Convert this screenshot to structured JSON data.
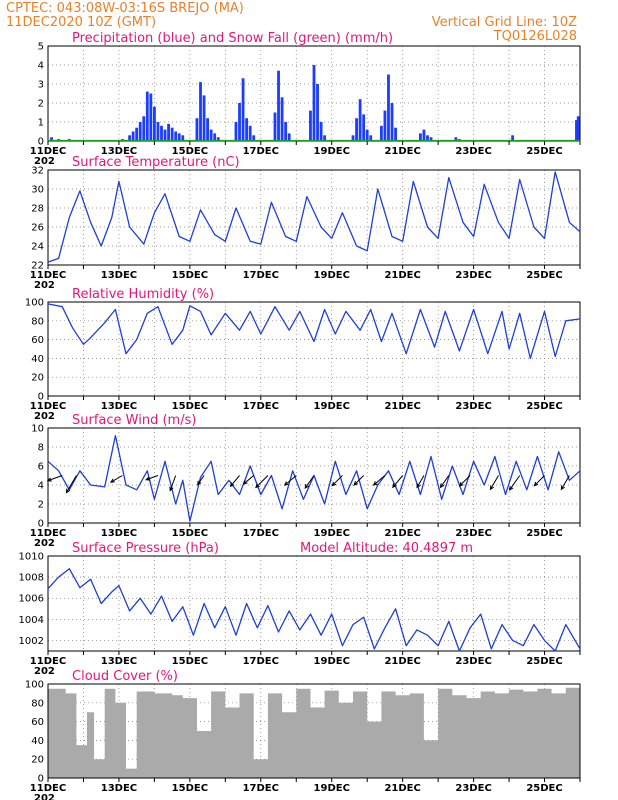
{
  "header": {
    "line1": "CPTEC:   043:08W-03:16S   BREJO (MA)",
    "line2": "11DEC2020 10Z (GMT)",
    "grid_note": "Vertical Grid Line: 10Z",
    "model_id": "TQ0126L028"
  },
  "x_ticks": [
    "11DEC",
    "13DEC",
    "15DEC",
    "17DEC",
    "19DEC",
    "21DEC",
    "23DEC",
    "25DEC"
  ],
  "x_tick_sub": "202",
  "colors": {
    "header": "#e8822a",
    "title": "#e0187a",
    "precip": "#1a3dff",
    "snow": "#1aa01a",
    "line": "#1f3fd6",
    "cloud": "#aaaaaa",
    "arrow": "#000000"
  },
  "chart_data": [
    {
      "type": "bar",
      "title": "Precipitation (blue) and Snow Fall (green) (mm/h)",
      "ylim": [
        0,
        5
      ],
      "yticks": [
        "0",
        "1",
        "2",
        "3",
        "4",
        "5"
      ],
      "x_unit": "days since 11DEC 10Z",
      "series": [
        {
          "name": "Precipitation (blue)",
          "x": [
            0.1,
            0.3,
            0.6,
            2.1,
            2.3,
            2.4,
            2.5,
            2.6,
            2.7,
            2.8,
            2.9,
            3.0,
            3.1,
            3.2,
            3.3,
            3.4,
            3.5,
            3.6,
            3.7,
            3.8,
            4.2,
            4.3,
            4.4,
            4.5,
            4.6,
            4.7,
            4.8,
            5.3,
            5.4,
            5.5,
            5.6,
            5.7,
            5.8,
            6.4,
            6.5,
            6.6,
            6.7,
            6.8,
            7.4,
            7.5,
            7.6,
            7.7,
            7.8,
            8.6,
            8.7,
            8.8,
            8.9,
            9.0,
            9.1,
            9.4,
            9.5,
            9.6,
            9.7,
            9.8,
            10.5,
            10.6,
            10.7,
            10.8,
            11.5,
            11.6,
            13.1,
            14.9,
            14.95
          ],
          "values": [
            0.2,
            0.1,
            0.1,
            0.1,
            0.3,
            0.5,
            0.7,
            1.0,
            1.3,
            2.6,
            2.5,
            1.8,
            1.0,
            0.8,
            0.6,
            0.9,
            0.7,
            0.5,
            0.4,
            0.3,
            1.2,
            3.1,
            2.4,
            1.2,
            0.6,
            0.4,
            0.2,
            1.0,
            2.0,
            3.3,
            1.2,
            0.8,
            0.3,
            1.5,
            3.7,
            2.3,
            1.0,
            0.4,
            1.6,
            4.0,
            3.0,
            1.0,
            0.3,
            0.3,
            1.2,
            2.2,
            1.4,
            0.6,
            0.3,
            0.8,
            1.6,
            3.5,
            2.0,
            0.7,
            0.4,
            0.6,
            0.3,
            0.2,
            0.2,
            0.1,
            0.3,
            1.1,
            1.3
          ]
        },
        {
          "name": "Snow Fall (green)",
          "x": [],
          "values": []
        }
      ]
    },
    {
      "type": "line",
      "title": "Surface Temperature (nC)",
      "ylim": [
        22,
        32
      ],
      "yticks": [
        "22",
        "24",
        "26",
        "28",
        "30",
        "32"
      ],
      "x": [
        0,
        0.3,
        0.6,
        0.9,
        1.2,
        1.5,
        1.8,
        2.0,
        2.3,
        2.7,
        3.0,
        3.3,
        3.7,
        4.0,
        4.3,
        4.7,
        5.0,
        5.3,
        5.7,
        6.0,
        6.3,
        6.7,
        7.0,
        7.3,
        7.7,
        8.0,
        8.3,
        8.7,
        9.0,
        9.3,
        9.7,
        10.0,
        10.3,
        10.7,
        11.0,
        11.3,
        11.7,
        12.0,
        12.3,
        12.7,
        13.0,
        13.3,
        13.7,
        14.0,
        14.3,
        14.7,
        15.0
      ],
      "series": [
        {
          "name": "Surface Temperature",
          "values": [
            22.3,
            22.7,
            27.0,
            29.8,
            26.5,
            24.0,
            27.0,
            30.8,
            26.0,
            24.2,
            27.5,
            29.5,
            25.0,
            24.5,
            27.8,
            25.2,
            24.5,
            28.0,
            24.5,
            24.2,
            28.6,
            25.0,
            24.5,
            29.2,
            26.0,
            24.8,
            27.5,
            24.0,
            23.5,
            30.0,
            25.0,
            24.5,
            30.8,
            26.0,
            24.8,
            31.2,
            26.5,
            25.0,
            30.5,
            26.5,
            24.8,
            31.0,
            26.0,
            24.8,
            31.8,
            26.5,
            25.5
          ]
        }
      ]
    },
    {
      "type": "line",
      "title": "Relative Humidity (%)",
      "ylim": [
        0,
        100
      ],
      "yticks": [
        "0",
        "20",
        "40",
        "60",
        "80",
        "100"
      ],
      "x": [
        0,
        0.4,
        0.7,
        1.0,
        1.2,
        1.6,
        1.9,
        2.2,
        2.5,
        2.8,
        3.1,
        3.5,
        3.8,
        4.0,
        4.3,
        4.6,
        5.0,
        5.4,
        5.7,
        6.0,
        6.4,
        6.8,
        7.1,
        7.5,
        7.8,
        8.1,
        8.4,
        8.8,
        9.1,
        9.4,
        9.7,
        10.1,
        10.5,
        10.9,
        11.2,
        11.6,
        12.0,
        12.4,
        12.8,
        13.0,
        13.3,
        13.6,
        14.0,
        14.3,
        14.6,
        15.0
      ],
      "series": [
        {
          "name": "Relative Humidity",
          "values": [
            98,
            95,
            72,
            55,
            62,
            78,
            92,
            45,
            60,
            88,
            95,
            55,
            70,
            96,
            90,
            65,
            88,
            70,
            90,
            66,
            95,
            70,
            90,
            58,
            92,
            66,
            90,
            70,
            92,
            58,
            88,
            45,
            92,
            52,
            90,
            48,
            92,
            45,
            90,
            50,
            88,
            40,
            90,
            42,
            80,
            82
          ]
        }
      ]
    },
    {
      "type": "line",
      "title": "Surface Wind (m/s)",
      "ylim": [
        0,
        10
      ],
      "yticks": [
        "0",
        "2",
        "4",
        "6",
        "8",
        "10"
      ],
      "x": [
        0,
        0.3,
        0.6,
        0.9,
        1.2,
        1.6,
        1.9,
        2.2,
        2.5,
        2.8,
        3.0,
        3.3,
        3.6,
        3.8,
        4.0,
        4.3,
        4.6,
        4.8,
        5.1,
        5.4,
        5.7,
        6.0,
        6.3,
        6.6,
        6.9,
        7.2,
        7.5,
        7.8,
        8.1,
        8.4,
        8.7,
        9.0,
        9.3,
        9.6,
        9.9,
        10.2,
        10.5,
        10.8,
        11.1,
        11.4,
        11.7,
        12.0,
        12.3,
        12.6,
        12.9,
        13.2,
        13.5,
        13.8,
        14.1,
        14.4,
        14.7,
        15.0
      ],
      "series": [
        {
          "name": "Surface Wind",
          "values": [
            6.5,
            5.5,
            3.5,
            5.5,
            4.0,
            3.8,
            9.2,
            4.0,
            3.5,
            5.5,
            2.5,
            6.5,
            2.0,
            4.5,
            0.2,
            4.8,
            6.5,
            3.0,
            4.5,
            3.0,
            6.0,
            3.0,
            5.0,
            1.5,
            5.5,
            2.5,
            5.0,
            2.0,
            6.5,
            3.0,
            5.5,
            1.5,
            4.0,
            5.5,
            3.0,
            6.5,
            3.0,
            7.0,
            2.5,
            6.0,
            3.0,
            6.5,
            4.0,
            7.0,
            3.0,
            6.5,
            3.5,
            7.0,
            3.5,
            7.5,
            4.5,
            5.5
          ]
        }
      ],
      "wind_vectors": [
        {
          "x": 0.4,
          "speed": 4.8,
          "dir_deg": 200
        },
        {
          "x": 0.8,
          "speed": 6.2,
          "dir_deg": 240
        },
        {
          "x": 2.1,
          "speed": 4.2,
          "dir_deg": 210
        },
        {
          "x": 3.1,
          "speed": 3.9,
          "dir_deg": 200
        },
        {
          "x": 3.6,
          "speed": 5.0,
          "dir_deg": 250
        },
        {
          "x": 4.4,
          "speed": 3.5,
          "dir_deg": 235
        },
        {
          "x": 5.4,
          "speed": 4.4,
          "dir_deg": 230
        },
        {
          "x": 5.8,
          "speed": 4.1,
          "dir_deg": 220
        },
        {
          "x": 6.2,
          "speed": 5.3,
          "dir_deg": 225
        },
        {
          "x": 7.0,
          "speed": 4.7,
          "dir_deg": 220
        },
        {
          "x": 7.5,
          "speed": 4.8,
          "dir_deg": 235
        },
        {
          "x": 8.3,
          "speed": 4.5,
          "dir_deg": 225
        },
        {
          "x": 8.9,
          "speed": 4.2,
          "dir_deg": 225
        },
        {
          "x": 9.5,
          "speed": 4.6,
          "dir_deg": 220
        },
        {
          "x": 10.0,
          "speed": 4.8,
          "dir_deg": 230
        },
        {
          "x": 10.6,
          "speed": 4.3,
          "dir_deg": 240
        },
        {
          "x": 11.3,
          "speed": 4.5,
          "dir_deg": 235
        },
        {
          "x": 11.9,
          "speed": 4.6,
          "dir_deg": 225
        },
        {
          "x": 12.7,
          "speed": 5.0,
          "dir_deg": 240
        },
        {
          "x": 13.3,
          "speed": 5.5,
          "dir_deg": 235
        },
        {
          "x": 14.0,
          "speed": 4.5,
          "dir_deg": 225
        },
        {
          "x": 14.7,
          "speed": 5.0,
          "dir_deg": 240
        }
      ]
    },
    {
      "type": "line",
      "title": "Surface Pressure (hPa)",
      "annotation": "Model Altitude: 40.4897 m",
      "ylim": [
        1001,
        1010
      ],
      "yticks": [
        "1002",
        "1004",
        "1006",
        "1008",
        "1010"
      ],
      "x": [
        0,
        0.3,
        0.6,
        0.9,
        1.2,
        1.5,
        1.8,
        2.0,
        2.3,
        2.6,
        2.9,
        3.2,
        3.5,
        3.8,
        4.1,
        4.4,
        4.7,
        5.0,
        5.3,
        5.6,
        5.9,
        6.2,
        6.5,
        6.8,
        7.1,
        7.4,
        7.7,
        8.0,
        8.3,
        8.6,
        8.9,
        9.2,
        9.5,
        9.8,
        10.1,
        10.4,
        10.7,
        11.0,
        11.3,
        11.6,
        11.9,
        12.2,
        12.5,
        12.8,
        13.1,
        13.4,
        13.7,
        14.0,
        14.3,
        14.6,
        15.0
      ],
      "series": [
        {
          "name": "Surface Pressure",
          "values": [
            1006.9,
            1008.0,
            1008.8,
            1007.0,
            1007.8,
            1005.5,
            1006.6,
            1007.2,
            1004.8,
            1006.0,
            1004.5,
            1006.2,
            1003.8,
            1005.2,
            1002.5,
            1005.5,
            1003.2,
            1005.2,
            1002.5,
            1005.5,
            1003.2,
            1005.3,
            1002.8,
            1004.8,
            1003.0,
            1004.5,
            1002.5,
            1004.5,
            1001.5,
            1003.5,
            1004.2,
            1001.2,
            1003.2,
            1005.0,
            1001.5,
            1003.0,
            1002.5,
            1001.5,
            1003.8,
            1001.0,
            1003.2,
            1004.5,
            1001.2,
            1003.5,
            1002.0,
            1001.5,
            1003.5,
            1002.0,
            1001.0,
            1003.5,
            1001.2
          ]
        }
      ]
    },
    {
      "type": "bar",
      "title": "Cloud Cover (%)",
      "ylim": [
        0,
        100
      ],
      "yticks": [
        "0",
        "20",
        "40",
        "60",
        "80",
        "100"
      ],
      "x_unit": "days since 11DEC 10Z",
      "x": [
        0,
        0.5,
        0.8,
        1.1,
        1.3,
        1.6,
        1.9,
        2.2,
        2.5,
        3.0,
        3.5,
        3.8,
        4.2,
        4.6,
        5.0,
        5.4,
        5.8,
        6.2,
        6.6,
        7.0,
        7.4,
        7.8,
        8.2,
        8.6,
        9.0,
        9.4,
        9.8,
        10.2,
        10.6,
        11.0,
        11.4,
        11.8,
        12.2,
        12.6,
        13.0,
        13.4,
        13.8,
        14.2,
        14.6,
        15.0
      ],
      "series": [
        {
          "name": "Cloud Cover",
          "values": [
            95,
            90,
            35,
            70,
            20,
            95,
            80,
            10,
            92,
            90,
            88,
            85,
            50,
            92,
            75,
            90,
            20,
            90,
            70,
            95,
            75,
            93,
            80,
            92,
            60,
            92,
            88,
            90,
            40,
            95,
            88,
            85,
            92,
            90,
            94,
            92,
            95,
            90,
            96,
            95
          ]
        }
      ]
    }
  ]
}
